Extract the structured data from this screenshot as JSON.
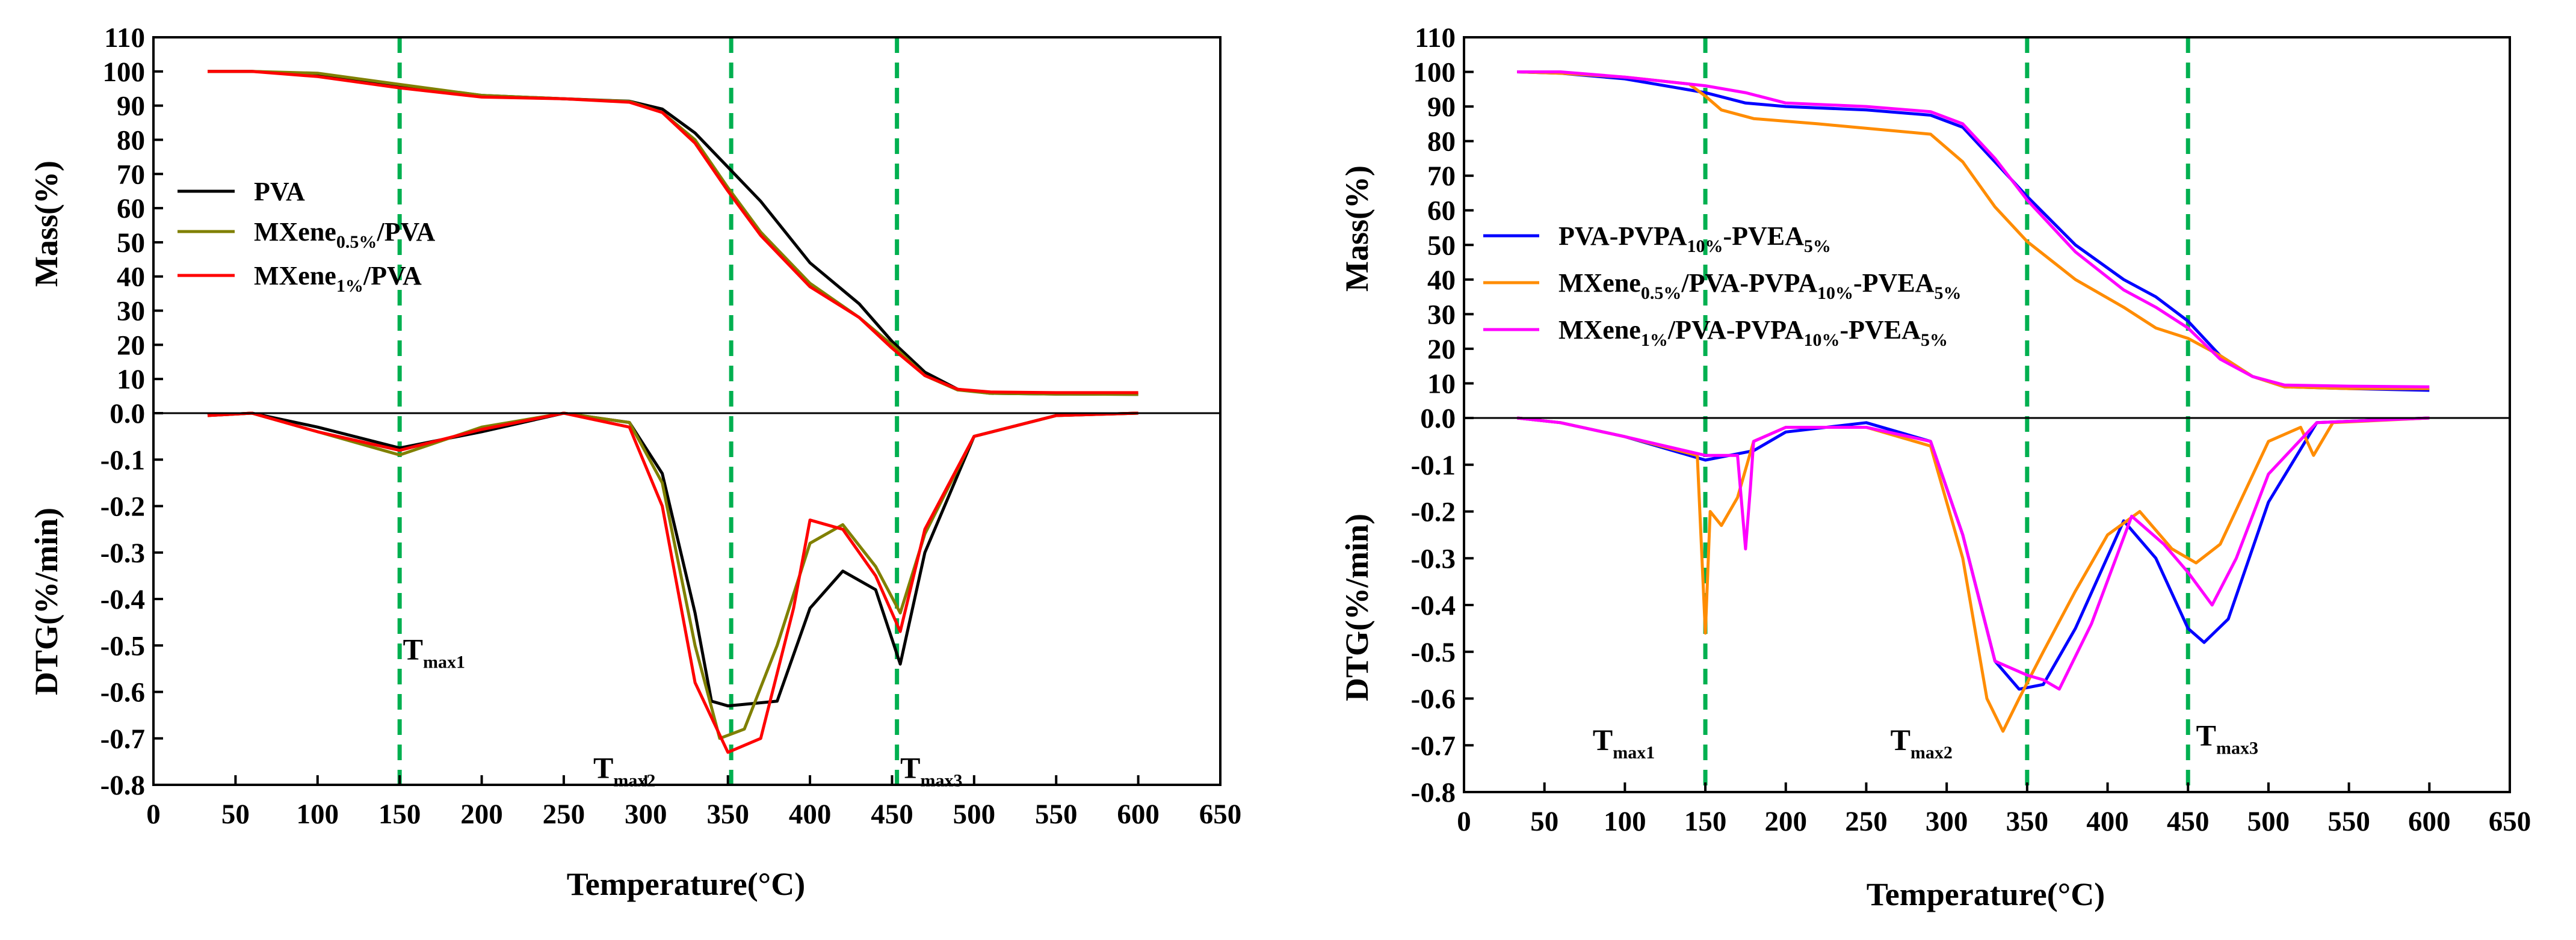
{
  "chart_data": [
    {
      "type": "line",
      "panel": "left",
      "xlabel": "Temperature(°C)",
      "xlim": [
        0,
        650
      ],
      "x_ticks": [
        0,
        50,
        100,
        150,
        200,
        250,
        300,
        350,
        400,
        450,
        500,
        550,
        600,
        650
      ],
      "top": {
        "ylabel": "Mass(%)",
        "ylim": [
          0,
          110
        ],
        "y_ticks": [
          0,
          10,
          20,
          30,
          40,
          50,
          60,
          70,
          80,
          90,
          100,
          110
        ],
        "series": [
          {
            "name": "PVA",
            "color": "#000000",
            "x": [
              33,
              60,
              100,
              150,
              200,
              250,
              290,
              310,
              330,
              350,
              370,
              400,
              430,
              450,
              470,
              490,
              510,
              550,
              600
            ],
            "y": [
              100,
              100,
              99.2,
              96,
              93,
              92,
              91.3,
              89,
              82,
              72,
              62,
              44,
              32,
              21,
              12,
              7,
              5.8,
              5.6,
              5.5
            ]
          },
          {
            "name": "MXene0.5%/PVA",
            "color": "#808000",
            "x": [
              33,
              60,
              100,
              150,
              200,
              250,
              290,
              310,
              330,
              350,
              370,
              400,
              430,
              450,
              470,
              490,
              510,
              550,
              600
            ],
            "y": [
              100,
              100,
              99.5,
              96.2,
              93,
              92,
              91.2,
              88,
              80,
              66,
              53,
              38,
              28,
              20,
              11,
              6.8,
              5.8,
              5.6,
              5.5
            ]
          },
          {
            "name": "MXene1%/PVA",
            "color": "#ff0000",
            "x": [
              33,
              60,
              100,
              150,
              200,
              250,
              290,
              310,
              330,
              350,
              370,
              400,
              430,
              450,
              470,
              490,
              510,
              550,
              600
            ],
            "y": [
              100,
              100,
              98.5,
              95.2,
              92.5,
              92,
              91,
              88,
              79,
              65,
              52,
              37,
              28,
              19,
              11,
              7,
              6.2,
              6,
              6
            ]
          }
        ]
      },
      "bottom": {
        "ylabel": "DTG(%/min)",
        "ylim": [
          -0.8,
          0
        ],
        "y_ticks": [
          0.0,
          -0.1,
          -0.2,
          -0.3,
          -0.4,
          -0.5,
          -0.6,
          -0.7,
          -0.8
        ],
        "series": [
          {
            "name": "PVA",
            "color": "#000000",
            "x": [
              33,
              60,
              100,
              150,
              200,
              250,
              290,
              310,
              330,
              340,
              350,
              380,
              400,
              420,
              440,
              455,
              470,
              500,
              550,
              600
            ],
            "y": [
              -0.005,
              0,
              -0.03,
              -0.075,
              -0.04,
              0,
              -0.02,
              -0.13,
              -0.43,
              -0.62,
              -0.63,
              -0.62,
              -0.42,
              -0.34,
              -0.38,
              -0.54,
              -0.3,
              -0.05,
              -0.005,
              0
            ]
          },
          {
            "name": "MXene0.5%/PVA",
            "color": "#808000",
            "x": [
              33,
              60,
              100,
              150,
              200,
              250,
              290,
              310,
              330,
              345,
              360,
              380,
              400,
              420,
              440,
              455,
              470,
              500,
              550,
              600
            ],
            "y": [
              -0.005,
              0,
              -0.04,
              -0.09,
              -0.03,
              0,
              -0.02,
              -0.15,
              -0.5,
              -0.7,
              -0.68,
              -0.5,
              -0.28,
              -0.24,
              -0.33,
              -0.43,
              -0.26,
              -0.05,
              -0.005,
              0
            ]
          },
          {
            "name": "MXene1%/PVA",
            "color": "#ff0000",
            "x": [
              33,
              60,
              100,
              150,
              200,
              250,
              290,
              310,
              330,
              350,
              370,
              390,
              400,
              420,
              440,
              455,
              470,
              500,
              550,
              600
            ],
            "y": [
              -0.005,
              0,
              -0.04,
              -0.08,
              -0.035,
              0,
              -0.03,
              -0.2,
              -0.58,
              -0.73,
              -0.7,
              -0.42,
              -0.23,
              -0.25,
              -0.35,
              -0.47,
              -0.25,
              -0.05,
              -0.005,
              0
            ]
          }
        ]
      },
      "legend": {
        "position": "middle-left",
        "entries": [
          "PVA",
          "MXene0.5%/PVA",
          "MXene1%/PVA"
        ]
      },
      "vlines": [
        150,
        352,
        453
      ],
      "annotations": [
        {
          "text": "T",
          "sub": "max1",
          "x": 152,
          "y": -0.53
        },
        {
          "text": "T",
          "sub": "max2",
          "x": 268,
          "y": -0.785
        },
        {
          "text": "T",
          "sub": "max3",
          "x": 455,
          "y": -0.785
        }
      ]
    },
    {
      "type": "line",
      "panel": "right",
      "xlabel": "Temperature(°C)",
      "xlim": [
        0,
        650
      ],
      "x_ticks": [
        0,
        50,
        100,
        150,
        200,
        250,
        300,
        350,
        400,
        450,
        500,
        550,
        600,
        650
      ],
      "top": {
        "ylabel": "Mass(%)",
        "ylim": [
          0,
          110
        ],
        "y_ticks": [
          0,
          10,
          20,
          30,
          40,
          50,
          60,
          70,
          80,
          90,
          100,
          110
        ],
        "series": [
          {
            "name": "PVA-PVPA10%-PVEA5%",
            "color": "#0000ff",
            "x": [
              33,
              60,
              100,
              150,
              175,
              200,
              250,
              290,
              310,
              330,
              350,
              380,
              410,
              430,
              450,
              470,
              490,
              510,
              550,
              600
            ],
            "y": [
              100,
              99.6,
              98,
              94,
              91,
              90,
              89,
              87.5,
              84,
              74,
              64,
              50,
              40,
              35,
              28,
              18,
              12,
              9,
              8.5,
              8
            ]
          },
          {
            "name": "MXene0.5%/PVA-PVPA10%-PVEA5%",
            "color": "#ff8c00",
            "x": [
              33,
              60,
              100,
              140,
              150,
              160,
              180,
              220,
              290,
              310,
              330,
              350,
              380,
              410,
              430,
              450,
              470,
              490,
              510,
              550,
              600
            ],
            "y": [
              100,
              99.6,
              98.5,
              96.5,
              93,
              89,
              86.5,
              85,
              82,
              74,
              61,
              51,
              40,
              32,
              26,
              23,
              18,
              12,
              9,
              8.5,
              8.5
            ]
          },
          {
            "name": "MXene1%/PVA-PVPA10%-PVEA5%",
            "color": "#ff00ff",
            "x": [
              33,
              60,
              100,
              150,
              175,
              200,
              250,
              290,
              310,
              330,
              350,
              380,
              410,
              430,
              450,
              470,
              490,
              510,
              550,
              600
            ],
            "y": [
              100,
              100,
              98.5,
              96,
              94,
              91,
              90,
              88.5,
              85,
              75,
              63,
              48,
              37,
              32,
              26,
              17,
              12,
              9.5,
              9.2,
              9
            ]
          }
        ]
      },
      "bottom": {
        "ylabel": "DTG(%/min)",
        "ylim": [
          -0.8,
          0
        ],
        "y_ticks": [
          0.0,
          -0.1,
          -0.2,
          -0.3,
          -0.4,
          -0.5,
          -0.6,
          -0.7,
          -0.8
        ],
        "series": [
          {
            "name": "PVA-PVPA10%-PVEA5%",
            "color": "#0000ff",
            "x": [
              33,
              60,
              100,
              150,
              180,
              200,
              250,
              290,
              310,
              330,
              345,
              360,
              380,
              410,
              430,
              450,
              460,
              475,
              500,
              530,
              600
            ],
            "y": [
              0,
              -0.01,
              -0.04,
              -0.09,
              -0.07,
              -0.03,
              -0.01,
              -0.05,
              -0.25,
              -0.52,
              -0.58,
              -0.57,
              -0.45,
              -0.22,
              -0.3,
              -0.45,
              -0.48,
              -0.43,
              -0.18,
              -0.01,
              0
            ]
          },
          {
            "name": "MXene0.5%/PVA-PVPA10%-PVEA5%",
            "color": "#ff8c00",
            "x": [
              33,
              60,
              100,
              145,
              150,
              153,
              160,
              170,
              180,
              200,
              250,
              290,
              310,
              325,
              335,
              345,
              360,
              380,
              400,
              420,
              440,
              455,
              470,
              500,
              520,
              528,
              540,
              600
            ],
            "y": [
              0,
              -0.01,
              -0.04,
              -0.08,
              -0.46,
              -0.2,
              -0.23,
              -0.17,
              -0.05,
              -0.02,
              -0.02,
              -0.06,
              -0.3,
              -0.6,
              -0.67,
              -0.6,
              -0.5,
              -0.37,
              -0.25,
              -0.2,
              -0.28,
              -0.31,
              -0.27,
              -0.05,
              -0.02,
              -0.08,
              -0.01,
              0
            ]
          },
          {
            "name": "MXene1%/PVA-PVPA10%-PVEA5%",
            "color": "#ff00ff",
            "x": [
              33,
              60,
              100,
              150,
              170,
              175,
              178,
              180,
              200,
              250,
              290,
              310,
              330,
              350,
              360,
              370,
              390,
              415,
              435,
              450,
              465,
              480,
              500,
              530,
              600
            ],
            "y": [
              0,
              -0.01,
              -0.04,
              -0.08,
              -0.08,
              -0.28,
              -0.15,
              -0.05,
              -0.02,
              -0.02,
              -0.05,
              -0.25,
              -0.52,
              -0.55,
              -0.56,
              -0.58,
              -0.44,
              -0.21,
              -0.27,
              -0.33,
              -0.4,
              -0.3,
              -0.12,
              -0.01,
              0
            ]
          }
        ]
      },
      "legend": {
        "position": "middle-left",
        "entries": [
          "PVA-PVPA10%-PVEA5%",
          "MXene0.5%/PVA-PVPA10%-PVEA5%",
          "MXene1%/PVA-PVPA10%-PVEA5%"
        ]
      },
      "vlines": [
        150,
        350,
        450
      ],
      "annotations": [
        {
          "text": "T",
          "sub": "max1",
          "x": 80,
          "y": -0.71
        },
        {
          "text": "T",
          "sub": "max2",
          "x": 265,
          "y": -0.71
        },
        {
          "text": "T",
          "sub": "max3",
          "x": 455,
          "y": -0.7
        }
      ]
    }
  ]
}
